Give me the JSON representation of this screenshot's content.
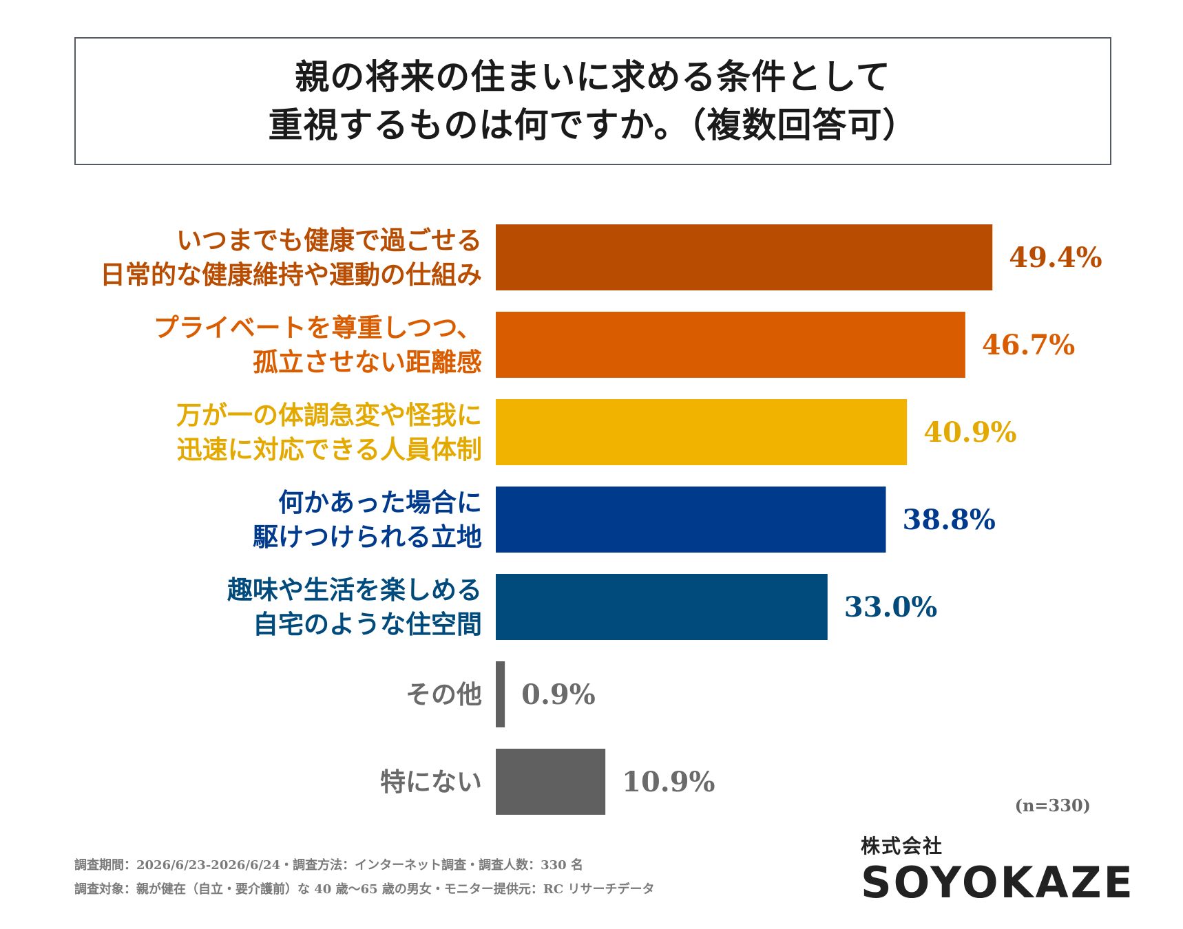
{
  "title": {
    "line1": "親の将来の住まいに求める条件として",
    "line2": "重視するものは何ですか。（複数回答可）"
  },
  "chart_data": {
    "type": "bar",
    "orientation": "horizontal",
    "xlim": [
      0,
      50
    ],
    "value_suffix": "%",
    "categories": [
      [
        "いつまでも健康で過ごせる",
        "日常的な健康維持や運動の仕組み"
      ],
      [
        "プライベートを尊重しつつ、",
        "孤立させない距離感"
      ],
      [
        "万が一の体調急変や怪我に",
        "迅速に対応できる人員体制"
      ],
      [
        "何かあった場合に",
        "駆けつけられる立地"
      ],
      [
        "趣味や生活を楽しめる",
        "自宅のような住空間"
      ],
      [
        "その他"
      ],
      [
        "特にない"
      ]
    ],
    "values": [
      49.4,
      46.7,
      40.9,
      38.8,
      33.0,
      0.9,
      10.9
    ],
    "value_labels": [
      "49.4%",
      "46.7%",
      "40.9%",
      "38.8%",
      "33.0%",
      "0.9%",
      "10.9%"
    ],
    "colors": [
      "#b84c00",
      "#d95d00",
      "#f2b200",
      "#003a8c",
      "#004a7c",
      "#606060",
      "#606060"
    ],
    "text_colors": [
      "#b84c00",
      "#d95d00",
      "#e3a900",
      "#003a8c",
      "#004a7c",
      "#6a6a6a",
      "#6a6a6a"
    ],
    "grid": false,
    "legend": "none"
  },
  "sample_size": "(n=330)",
  "footnotes": {
    "line1": "調査期間：2026/6/23-2026/6/24・調査方法：インターネット調査・調査人数：330 名",
    "line2": "調査対象：親が健在（自立・要介護前）な 40 歳〜65 歳の男女・モニター提供元：RC リサーチデータ"
  },
  "logo": {
    "sub": "株式会社",
    "main": "SOYOKAZE"
  }
}
